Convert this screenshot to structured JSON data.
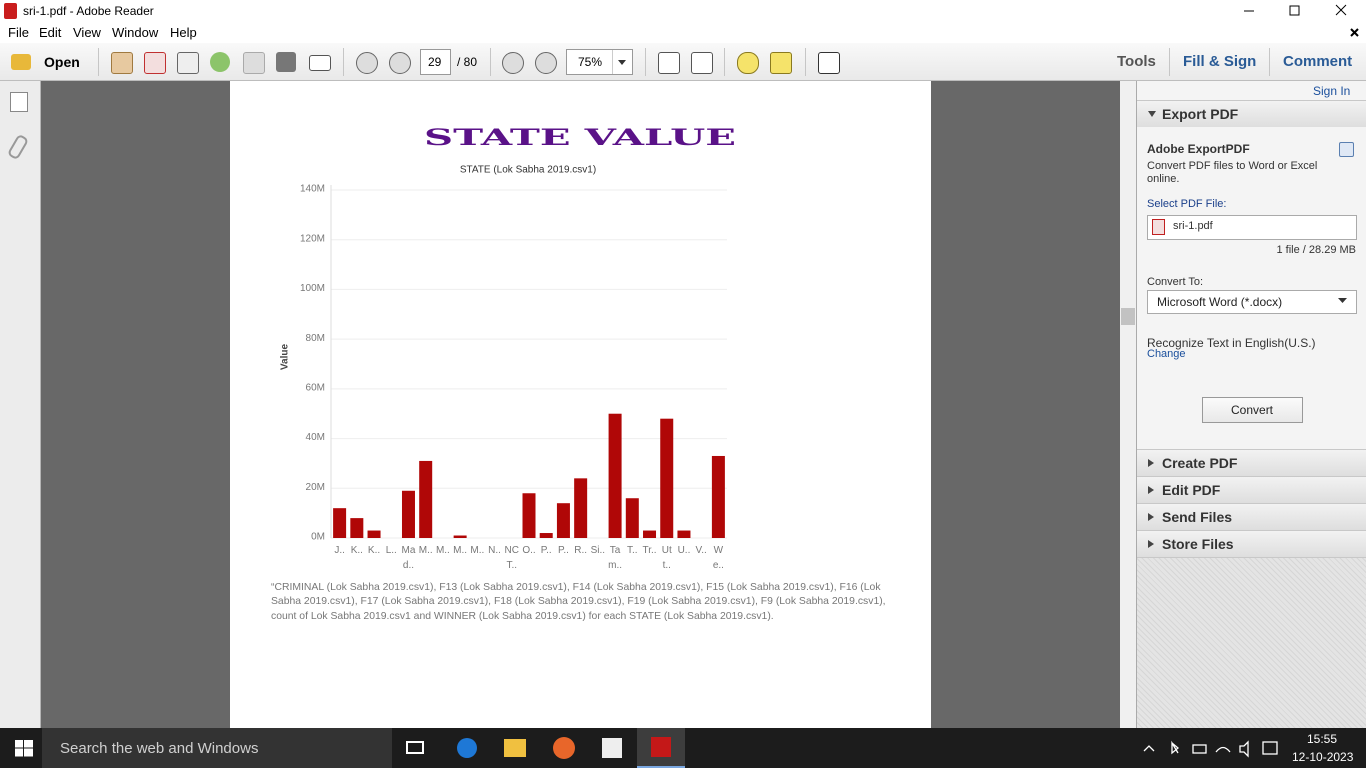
{
  "window": {
    "title": "sri-1.pdf - Adobe Reader"
  },
  "menu": [
    "File",
    "Edit",
    "View",
    "Window",
    "Help"
  ],
  "toolbar": {
    "open": "Open",
    "page": "29",
    "page_count": "/ 80",
    "zoom": "75%",
    "tabs": [
      "Tools",
      "Fill & Sign",
      "Comment"
    ]
  },
  "right_panel": {
    "sign_in": "Sign In",
    "export_header": "Export PDF",
    "service": "Adobe ExportPDF",
    "description": "Convert PDF files to Word or Excel online.",
    "select_label": "Select PDF File:",
    "file_name": "sri-1.pdf",
    "file_info": "1 file / 28.29 MB",
    "convert_to": "Convert To:",
    "format": "Microsoft Word (*.docx)",
    "recognize": "Recognize Text in English(U.S.)",
    "change": "Change",
    "convert_button": "Convert",
    "sections": [
      "Create PDF",
      "Edit PDF",
      "Send Files",
      "Store Files"
    ]
  },
  "document": {
    "caption": "“CRIMINAL (Lok Sabha 2019.csv1), F13 (Lok Sabha 2019.csv1), F14 (Lok Sabha 2019.csv1), F15 (Lok Sabha 2019.csv1), F16 (Lok Sabha 2019.csv1), F17 (Lok Sabha 2019.csv1), F18 (Lok Sabha 2019.csv1), F19 (Lok Sabha 2019.csv1), F9 (Lok Sabha 2019.csv1), count of Lok Sabha 2019.csv1 and WINNER (Lok Sabha 2019.csv1) for each STATE (Lok Sabha 2019.csv1)."
  },
  "chart_data": {
    "type": "bar",
    "title": "STATE VALUE",
    "subtitle": "STATE (Lok Sabha 2019.csv1)",
    "y_label": "Value",
    "categories": [
      "J..",
      "K..",
      "K..",
      "L..",
      "Ma d..",
      "M..",
      "M..",
      "M..",
      "M..",
      "N..",
      "NC T..",
      "O..",
      "P..",
      "P..",
      "R..",
      "Si..",
      "Ta m..",
      "T..",
      "Tr..",
      "Ut t..",
      "U..",
      "V..",
      "W e.."
    ],
    "values": [
      12,
      8,
      3,
      0,
      19,
      31,
      0,
      1,
      0,
      0,
      0,
      18,
      2,
      14,
      24,
      0,
      50,
      16,
      3,
      48,
      3,
      0,
      33
    ],
    "color": "#b00707",
    "ylim": [
      0,
      140
    ],
    "yticks": [
      {
        "value": 0,
        "label": "0M"
      },
      {
        "value": 20,
        "label": "20M"
      },
      {
        "value": 40,
        "label": "40M"
      },
      {
        "value": 60,
        "label": "60M"
      },
      {
        "value": 80,
        "label": "80M"
      },
      {
        "value": 100,
        "label": "100M"
      },
      {
        "value": 120,
        "label": "120M"
      },
      {
        "value": 140,
        "label": "140M"
      }
    ],
    "grid": true
  },
  "taskbar": {
    "search": "Search the web and Windows",
    "time": "15:55",
    "date": "12-10-2023"
  }
}
